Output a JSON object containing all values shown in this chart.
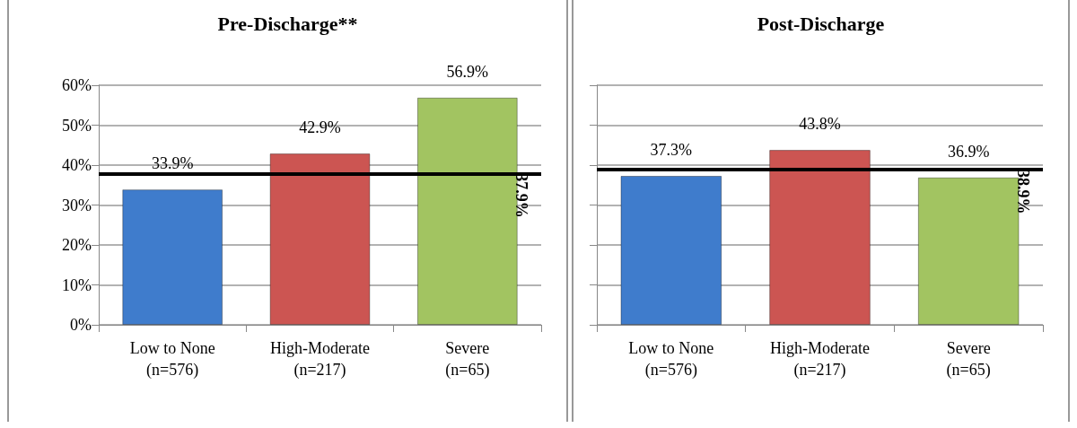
{
  "chart_data": [
    {
      "type": "bar",
      "title": "Pre-Discharge**",
      "categories": [
        "Low to None\n(n=576)",
        "High-Moderate\n(n=217)",
        "Severe\n(n=65)"
      ],
      "values": [
        33.9,
        42.9,
        56.9
      ],
      "colors": [
        "#3f7ccc",
        "#cc5552",
        "#a2c461"
      ],
      "value_labels": [
        "33.9%",
        "42.9%",
        "56.9%"
      ],
      "ylim": [
        0,
        60
      ],
      "yticks": [
        {
          "value": 0,
          "label": "0%"
        },
        {
          "value": 10,
          "label": "10%"
        },
        {
          "value": 20,
          "label": "20%"
        },
        {
          "value": 30,
          "label": "30%"
        },
        {
          "value": 40,
          "label": "40%"
        },
        {
          "value": 50,
          "label": "50%"
        },
        {
          "value": 60,
          "label": "60%"
        }
      ],
      "grid": "y",
      "ref_lines": [
        {
          "axis": "y",
          "value": 37.9,
          "label": "37.9%",
          "color": "#000000"
        }
      ]
    },
    {
      "type": "bar",
      "title": "Post-Discharge",
      "categories": [
        "Low to None\n(n=576)",
        "High-Moderate\n(n=217)",
        "Severe\n(n=65)"
      ],
      "values": [
        37.3,
        43.8,
        36.9
      ],
      "colors": [
        "#3f7ccc",
        "#cc5552",
        "#a2c461"
      ],
      "value_labels": [
        "37.3%",
        "43.8%",
        "36.9%"
      ],
      "ylim": [
        0,
        60
      ],
      "yticks": [
        {
          "value": 0,
          "label": null
        },
        {
          "value": 10,
          "label": null
        },
        {
          "value": 20,
          "label": null
        },
        {
          "value": 30,
          "label": null
        },
        {
          "value": 40,
          "label": null
        },
        {
          "value": 50,
          "label": null
        },
        {
          "value": 60,
          "label": null
        }
      ],
      "grid": "y",
      "tick_labels": "x",
      "ref_lines": [
        {
          "axis": "y",
          "value": 38.9,
          "label": "38.9%",
          "color": "#000000"
        }
      ]
    }
  ]
}
